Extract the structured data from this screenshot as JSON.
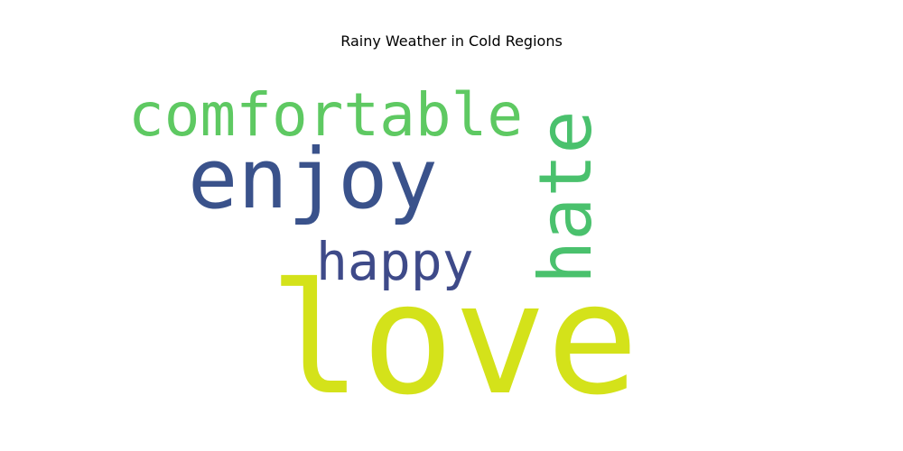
{
  "chart_data": {
    "type": "wordcloud",
    "title": "Rainy Weather in Cold Regions",
    "words": [
      {
        "text": "love",
        "weight": 5,
        "color": "#d4e21a",
        "orientation": "horizontal"
      },
      {
        "text": "enjoy",
        "weight": 3,
        "color": "#3a528b",
        "orientation": "horizontal"
      },
      {
        "text": "comfortable",
        "weight": 2,
        "color": "#5ec962",
        "orientation": "horizontal"
      },
      {
        "text": "hate",
        "weight": 2,
        "color": "#4ac16d",
        "orientation": "vertical"
      },
      {
        "text": "happy",
        "weight": 1.5,
        "color": "#3e4a89",
        "orientation": "horizontal"
      }
    ]
  }
}
